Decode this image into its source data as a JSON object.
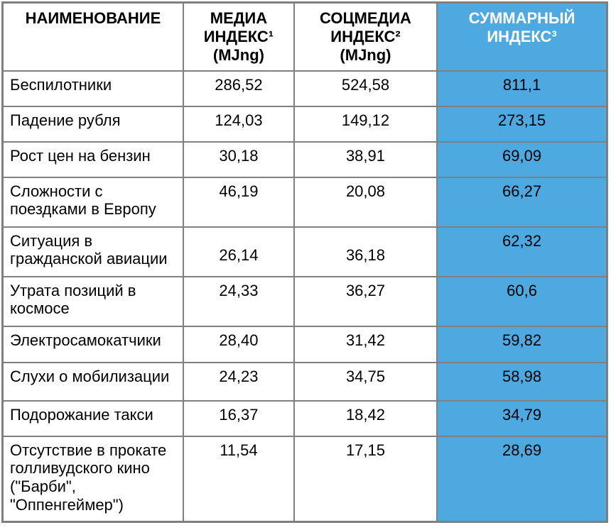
{
  "table": {
    "columns": {
      "name": {
        "label": "НАИМЕНОВАНИЕ"
      },
      "media": {
        "label": "МЕДИА\nИНДЕКС¹\n(MJng)"
      },
      "social": {
        "label": "СОЦМЕДИА\nИНДЕКС²\n(MJng)"
      },
      "total": {
        "label": "СУММАРНЫЙ\nИНДЕКС³"
      }
    },
    "rows": [
      {
        "name": "Беспилотники",
        "media": "286,52",
        "social": "524,58",
        "total": "811,1"
      },
      {
        "name": "Падение рубля",
        "media": "124,03",
        "social": "149,12",
        "total": "273,15"
      },
      {
        "name": "Рост цен на бензин",
        "media": "30,18",
        "social": "38,91",
        "total": "69,09"
      },
      {
        "name": "Сложности с\nпоездками в Европу",
        "media": "46,19",
        "social": "20,08",
        "total": "66,27"
      },
      {
        "name": "Ситуация в\nгражданской авиации",
        "media": "26,14",
        "social": "36,18",
        "total": "62,32"
      },
      {
        "name": "Утрата позиций в\nкосмосе",
        "media": "24,33",
        "social": "36,27",
        "total": "60,6"
      },
      {
        "name": "Электросамокатчики",
        "media": "28,40",
        "social": "31,42",
        "total": "59,82"
      },
      {
        "name": "Слухи о мобилизации",
        "media": "24,23",
        "social": "34,75",
        "total": "58,98"
      },
      {
        "name": "Подорожание такси",
        "media": "16,37",
        "social": "18,42",
        "total": "34,79"
      },
      {
        "name": "Отсутствие в прокате\nголливудского кино\n(\"Барби\",\n\"Оппенгеймер\")",
        "media": "11,54",
        "social": "17,15",
        "total": "28,69"
      }
    ]
  },
  "colors": {
    "accent_blue": "#4FA9E1",
    "border_gray": "#808080",
    "outer_border_gray": "#7F7F7F",
    "header_text_on_blue": "#FFFFFF",
    "body_text": "#000000"
  }
}
